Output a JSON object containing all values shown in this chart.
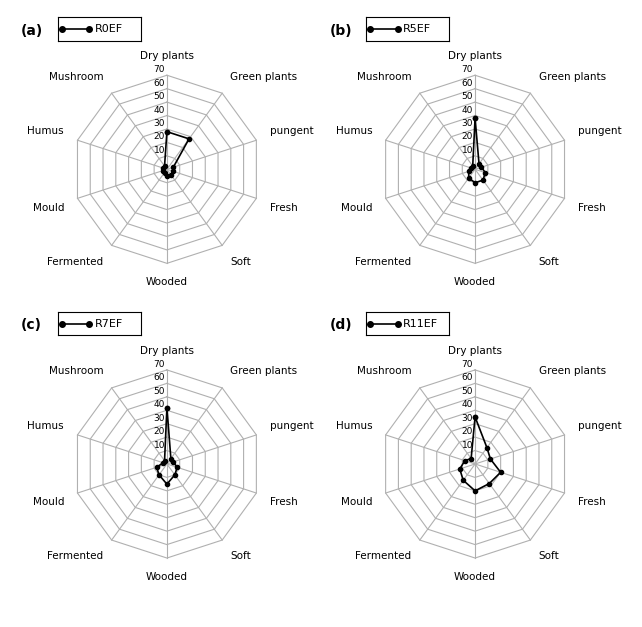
{
  "categories": [
    "Dry plants",
    "Green plants",
    "pungent",
    "Fresh",
    "Soft",
    "Wooded",
    "Fermented",
    "Mould",
    "Humus",
    "Mushroom"
  ],
  "r_max": 70,
  "r_ticks": [
    10,
    20,
    30,
    40,
    50,
    60,
    70
  ],
  "series": {
    "R0EF": [
      28,
      28,
      5,
      5,
      5,
      5,
      3,
      3,
      3,
      3
    ],
    "R5EF": [
      38,
      5,
      5,
      8,
      10,
      10,
      8,
      5,
      3,
      3
    ],
    "R7EF": [
      42,
      5,
      5,
      8,
      10,
      15,
      10,
      8,
      3,
      3
    ],
    "R11EF": [
      35,
      15,
      12,
      20,
      18,
      20,
      15,
      12,
      8,
      5
    ]
  },
  "panel_labels": [
    "(a)",
    "(b)",
    "(c)",
    "(d)"
  ],
  "legend_labels": [
    "R0EF",
    "R5EF",
    "R7EF",
    "R11EF"
  ],
  "line_color": "#000000",
  "grid_color": "#b0b0b0",
  "bg_color": "#ffffff",
  "fontsize_labels": 7.5,
  "fontsize_ticks": 6.5,
  "fontsize_panel": 10
}
